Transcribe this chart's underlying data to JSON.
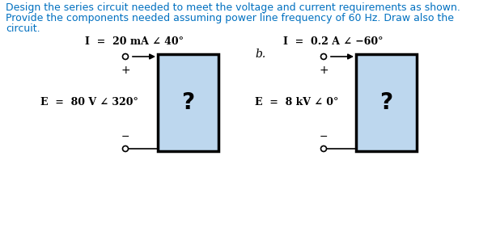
{
  "title_line1": "Design the series circuit needed to meet the voltage and current requirements as shown.",
  "title_line2": "Provide the components needed assuming power line frequency of 60 Hz. Draw also the",
  "title_line3": "circuit.",
  "title_color": "#0070c0",
  "background_color": "#ffffff",
  "box_fill_color": "#bdd7ee",
  "box_edge_color": "#000000",
  "circuit_a": {
    "current_label": "I  =  20 mA ∠ 40°",
    "voltage_label": "E  =  80 V ∠ 320°",
    "question_mark": "?",
    "plus_label": "+",
    "minus_label": "−"
  },
  "circuit_b": {
    "label": "b.",
    "current_label": "I  =  0.2 A ∠ −60°",
    "voltage_label": "E  =  8 kV ∠ 0°",
    "question_mark": "?",
    "plus_label": "+",
    "minus_label": "−"
  }
}
